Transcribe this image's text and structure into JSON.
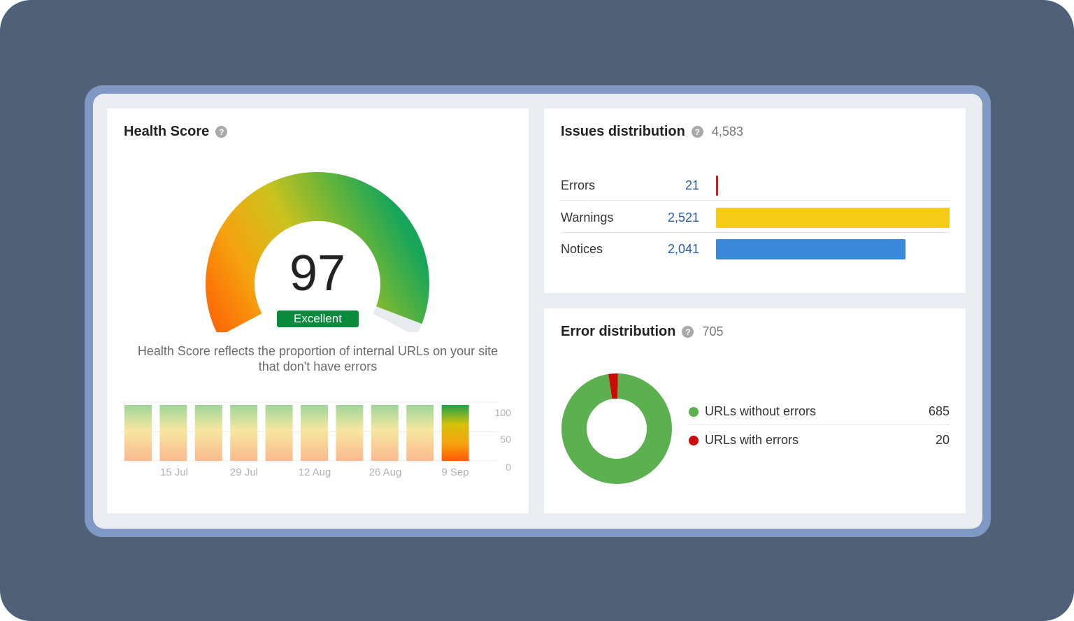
{
  "health": {
    "title": "Health Score",
    "score": "97",
    "score_fraction": 0.97,
    "badge": "Excellent",
    "description": "Health Score reflects the proportion of internal URLs on your site that don't have errors",
    "history": {
      "x_labels": [
        "15 Jul",
        "29 Jul",
        "12 Aug",
        "26 Aug",
        "9 Sep"
      ],
      "y_labels": [
        "100",
        "50",
        "0"
      ],
      "bar_count": 10,
      "active_index": 9
    }
  },
  "issues": {
    "title": "Issues distribution",
    "total": "4,583",
    "rows": [
      {
        "label": "Errors",
        "value": "21",
        "share": 0.008,
        "color": "#cc1f1f"
      },
      {
        "label": "Warnings",
        "value": "2,521",
        "share": 1.0,
        "color": "#f4cc16"
      },
      {
        "label": "Notices",
        "value": "2,041",
        "share": 0.81,
        "color": "#3a8ad9"
      }
    ]
  },
  "errors": {
    "title": "Error distribution",
    "total": "705",
    "chart_data": {
      "type": "pie",
      "categories": [
        "URLs without errors",
        "URLs with errors"
      ],
      "values": [
        685,
        20
      ],
      "colors": [
        "#5cb050",
        "#cc0a0a"
      ]
    },
    "legend": [
      {
        "label": "URLs without errors",
        "value": "685",
        "color": "#5cb050"
      },
      {
        "label": "URLs with errors",
        "value": "20",
        "color": "#cc0a0a"
      }
    ]
  }
}
